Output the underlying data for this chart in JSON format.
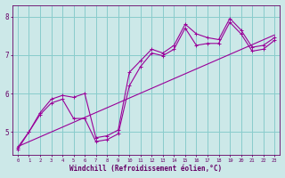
{
  "x": [
    0,
    1,
    2,
    3,
    4,
    5,
    6,
    7,
    8,
    9,
    10,
    11,
    12,
    13,
    14,
    15,
    16,
    17,
    18,
    19,
    20,
    21,
    22,
    23
  ],
  "line1": [
    4.6,
    5.0,
    5.5,
    5.85,
    5.95,
    5.9,
    6.0,
    4.85,
    4.9,
    5.05,
    6.55,
    6.85,
    7.15,
    7.05,
    7.25,
    7.8,
    7.55,
    7.45,
    7.4,
    7.95,
    7.65,
    7.2,
    7.25,
    7.45
  ],
  "line2": [
    4.55,
    5.0,
    5.45,
    5.75,
    5.85,
    5.35,
    5.35,
    4.75,
    4.8,
    4.95,
    6.2,
    6.7,
    7.05,
    6.98,
    7.15,
    7.7,
    7.25,
    7.3,
    7.3,
    7.85,
    7.55,
    7.1,
    7.15,
    7.38
  ],
  "trend_x": [
    0,
    23
  ],
  "trend_y": [
    4.62,
    7.52
  ],
  "line_color": "#990099",
  "bg_color": "#cce8e8",
  "grid_color": "#88cccc",
  "xlabel": "Windchill (Refroidissement éolien,°C)",
  "xlabel_color": "#660066",
  "tick_color": "#660066",
  "ylim": [
    4.4,
    8.3
  ],
  "xlim": [
    -0.5,
    23.5
  ],
  "yticks": [
    5,
    6,
    7,
    8
  ],
  "xticks": [
    0,
    1,
    2,
    3,
    4,
    5,
    6,
    7,
    8,
    9,
    10,
    11,
    12,
    13,
    14,
    15,
    16,
    17,
    18,
    19,
    20,
    21,
    22,
    23
  ]
}
